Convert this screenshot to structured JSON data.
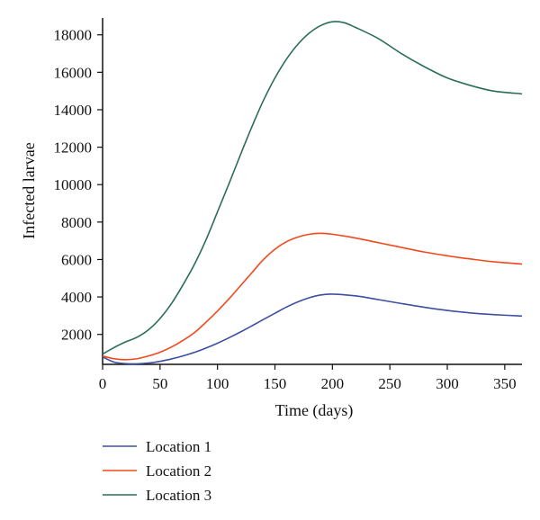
{
  "chart_data": {
    "type": "line",
    "title": "",
    "xlabel": "Time (days)",
    "ylabel": "Infected larvae",
    "xlim": [
      0,
      365
    ],
    "ylim": [
      400,
      18900
    ],
    "xticks": [
      0,
      50,
      100,
      150,
      200,
      250,
      300,
      350
    ],
    "yticks": [
      2000,
      4000,
      6000,
      8000,
      10000,
      12000,
      14000,
      16000,
      18000
    ],
    "grid": false,
    "legend_position": "bottom-left, below plot",
    "series": [
      {
        "name": "Location 1",
        "color": "#3b4fa3",
        "x": [
          0,
          10,
          20,
          30,
          40,
          50,
          60,
          70,
          80,
          90,
          100,
          110,
          120,
          130,
          140,
          150,
          160,
          170,
          180,
          190,
          200,
          220,
          240,
          260,
          280,
          300,
          320,
          340,
          365
        ],
        "y": [
          800,
          520,
          440,
          430,
          470,
          560,
          690,
          850,
          1040,
          1270,
          1530,
          1820,
          2130,
          2460,
          2800,
          3130,
          3460,
          3740,
          3960,
          4110,
          4150,
          4060,
          3860,
          3650,
          3450,
          3280,
          3150,
          3060,
          2980
        ]
      },
      {
        "name": "Location 2",
        "color": "#f04a1c",
        "x": [
          0,
          10,
          20,
          30,
          40,
          50,
          60,
          70,
          80,
          90,
          100,
          110,
          120,
          130,
          140,
          150,
          160,
          170,
          180,
          190,
          200,
          220,
          240,
          260,
          280,
          300,
          320,
          340,
          365
        ],
        "y": [
          850,
          700,
          650,
          700,
          850,
          1050,
          1330,
          1680,
          2100,
          2650,
          3250,
          3900,
          4600,
          5300,
          6000,
          6550,
          6950,
          7200,
          7350,
          7400,
          7350,
          7150,
          6900,
          6650,
          6400,
          6200,
          6030,
          5880,
          5760
        ]
      },
      {
        "name": "Location 3",
        "color": "#2b6e58",
        "x": [
          0,
          10,
          20,
          30,
          40,
          50,
          60,
          70,
          80,
          90,
          100,
          110,
          120,
          130,
          140,
          150,
          160,
          170,
          180,
          190,
          200,
          210,
          220,
          240,
          260,
          280,
          300,
          320,
          340,
          365
        ],
        "y": [
          950,
          1300,
          1600,
          1850,
          2250,
          2850,
          3650,
          4650,
          5750,
          7050,
          8550,
          10050,
          11600,
          13100,
          14500,
          15700,
          16700,
          17500,
          18100,
          18500,
          18700,
          18650,
          18400,
          17800,
          17000,
          16300,
          15700,
          15300,
          15000,
          14850
        ]
      }
    ]
  }
}
